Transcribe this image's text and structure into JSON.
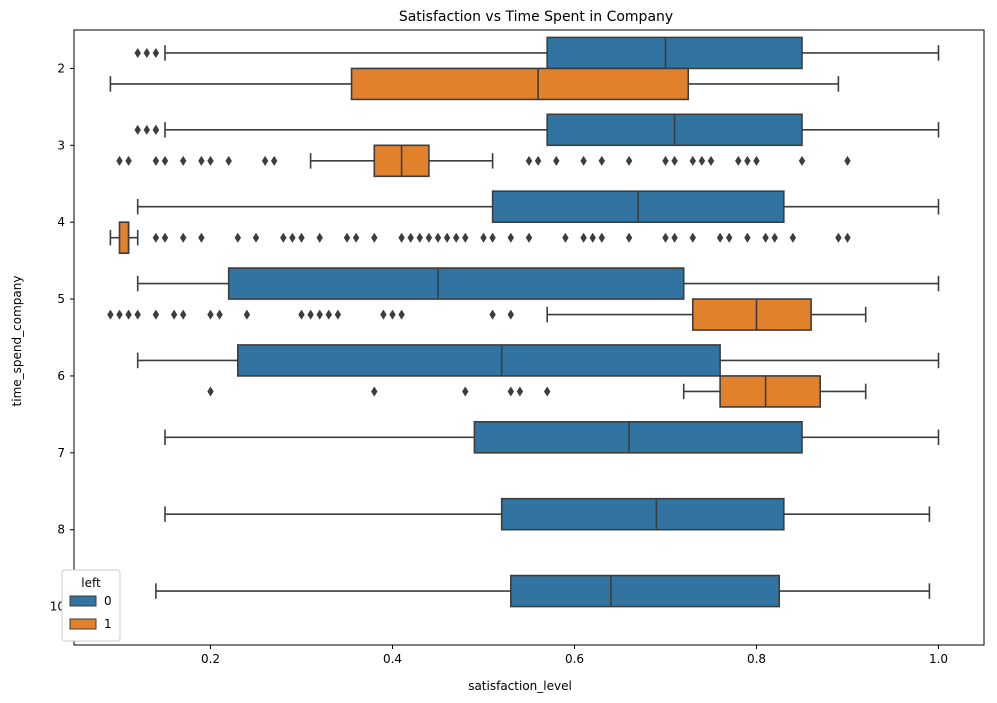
{
  "chart_data": {
    "type": "boxplot",
    "title": "Satisfaction vs Time Spent in Company",
    "xlabel": "satisfaction_level",
    "ylabel": "time_spend_company",
    "orientation": "horizontal",
    "xlim": [
      0.05,
      1.05
    ],
    "x_ticks": [
      0.2,
      0.4,
      0.6,
      0.8,
      1.0
    ],
    "x_tick_labels": [
      "0.2",
      "0.4",
      "0.6",
      "0.8",
      "1.0"
    ],
    "categories": [
      "2",
      "3",
      "4",
      "5",
      "6",
      "7",
      "8",
      "10"
    ],
    "legend": {
      "title": "left",
      "placement": "lower left",
      "entries": [
        "0",
        "1"
      ]
    },
    "colors": {
      "0": "#3274a1",
      "1": "#e1812c"
    },
    "series": [
      {
        "name": "0",
        "boxes": [
          {
            "category": "2",
            "whisker_low": 0.15,
            "q1": 0.57,
            "median": 0.7,
            "q3": 0.85,
            "whisker_high": 1.0,
            "outliers": [
              0.12,
              0.13,
              0.14
            ]
          },
          {
            "category": "3",
            "whisker_low": 0.15,
            "q1": 0.57,
            "median": 0.71,
            "q3": 0.85,
            "whisker_high": 1.0,
            "outliers": [
              0.12,
              0.13,
              0.14,
              0.14
            ]
          },
          {
            "category": "4",
            "whisker_low": 0.12,
            "q1": 0.51,
            "median": 0.67,
            "q3": 0.83,
            "whisker_high": 1.0,
            "outliers": []
          },
          {
            "category": "5",
            "whisker_low": 0.12,
            "q1": 0.22,
            "median": 0.45,
            "q3": 0.72,
            "whisker_high": 1.0,
            "outliers": []
          },
          {
            "category": "6",
            "whisker_low": 0.12,
            "q1": 0.23,
            "median": 0.52,
            "q3": 0.76,
            "whisker_high": 1.0,
            "outliers": []
          },
          {
            "category": "7",
            "whisker_low": 0.15,
            "q1": 0.49,
            "median": 0.66,
            "q3": 0.85,
            "whisker_high": 1.0,
            "outliers": []
          },
          {
            "category": "8",
            "whisker_low": 0.15,
            "q1": 0.52,
            "median": 0.69,
            "q3": 0.83,
            "whisker_high": 0.99,
            "outliers": []
          },
          {
            "category": "10",
            "whisker_low": 0.14,
            "q1": 0.53,
            "median": 0.64,
            "q3": 0.825,
            "whisker_high": 0.99,
            "outliers": []
          }
        ]
      },
      {
        "name": "1",
        "boxes": [
          {
            "category": "2",
            "whisker_low": 0.09,
            "q1": 0.355,
            "median": 0.56,
            "q3": 0.725,
            "whisker_high": 0.89,
            "outliers": []
          },
          {
            "category": "3",
            "whisker_low": 0.31,
            "q1": 0.38,
            "median": 0.41,
            "q3": 0.44,
            "whisker_high": 0.51,
            "outliers": [
              0.1,
              0.11,
              0.14,
              0.15,
              0.17,
              0.19,
              0.2,
              0.22,
              0.26,
              0.27,
              0.55,
              0.56,
              0.58,
              0.61,
              0.63,
              0.66,
              0.7,
              0.71,
              0.73,
              0.74,
              0.75,
              0.78,
              0.79,
              0.8,
              0.85,
              0.9
            ]
          },
          {
            "category": "4",
            "whisker_low": 0.09,
            "q1": 0.1,
            "median": 0.11,
            "q3": 0.11,
            "whisker_high": 0.12,
            "outliers": [
              0.14,
              0.15,
              0.17,
              0.19,
              0.23,
              0.25,
              0.28,
              0.29,
              0.3,
              0.32,
              0.35,
              0.36,
              0.38,
              0.41,
              0.42,
              0.43,
              0.44,
              0.45,
              0.46,
              0.47,
              0.48,
              0.5,
              0.51,
              0.53,
              0.55,
              0.59,
              0.61,
              0.62,
              0.63,
              0.66,
              0.7,
              0.71,
              0.73,
              0.76,
              0.77,
              0.79,
              0.81,
              0.82,
              0.84,
              0.89,
              0.9
            ]
          },
          {
            "category": "5",
            "whisker_low": 0.57,
            "q1": 0.73,
            "median": 0.8,
            "q3": 0.86,
            "whisker_high": 0.92,
            "outliers": [
              0.09,
              0.1,
              0.11,
              0.12,
              0.14,
              0.16,
              0.17,
              0.2,
              0.21,
              0.24,
              0.3,
              0.31,
              0.32,
              0.33,
              0.34,
              0.39,
              0.4,
              0.41,
              0.51,
              0.53
            ]
          },
          {
            "category": "6",
            "whisker_low": 0.72,
            "q1": 0.76,
            "median": 0.81,
            "q3": 0.87,
            "whisker_high": 0.92,
            "outliers": [
              0.2,
              0.38,
              0.48,
              0.53,
              0.54,
              0.57
            ]
          }
        ]
      }
    ]
  }
}
